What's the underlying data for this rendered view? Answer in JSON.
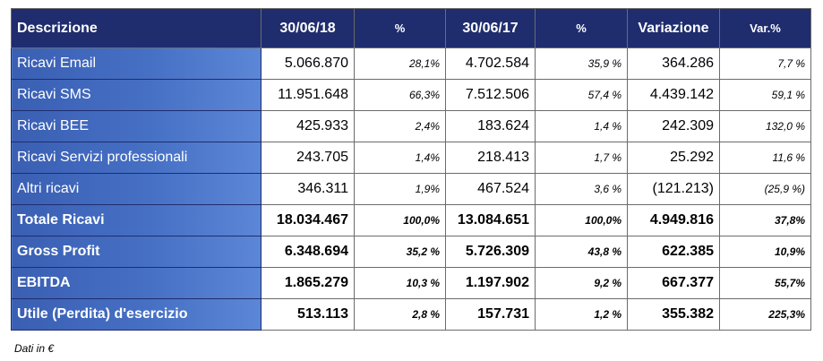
{
  "table": {
    "headers": [
      "Descrizione",
      "30/06/18",
      "%",
      "30/06/17",
      "%",
      "Variazione",
      "Var.%"
    ],
    "rows": [
      [
        "Ricavi Email",
        "5.066.870",
        "28,1%",
        "4.702.584",
        "35,9 %",
        "364.286",
        "7,7 %"
      ],
      [
        "Ricavi SMS",
        "11.951.648",
        "66,3%",
        "7.512.506",
        "57,4 %",
        "4.439.142",
        "59,1 %"
      ],
      [
        "Ricavi BEE",
        "425.933",
        "2,4%",
        "183.624",
        "1,4 %",
        "242.309",
        "132,0 %"
      ],
      [
        "Ricavi Servizi professionali",
        "243.705",
        "1,4%",
        "218.413",
        "1,7 %",
        "25.292",
        "11,6 %"
      ],
      [
        "Altri ricavi",
        "346.311",
        "1,9%",
        "467.524",
        "3,6 %",
        "(121.213)",
        "(25,9 %)"
      ],
      [
        "Totale Ricavi",
        "18.034.467",
        "100,0%",
        "13.084.651",
        "100,0%",
        "4.949.816",
        "37,8%"
      ],
      [
        "Gross Profit",
        "6.348.694",
        "35,2 %",
        "5.726.309",
        "43,8 %",
        "622.385",
        "10,9%"
      ],
      [
        "EBITDA",
        "1.865.279",
        "10,3 %",
        "1.197.902",
        "9,2 %",
        "667.377",
        "55,7%"
      ],
      [
        "Utile (Perdita) d'esercizio",
        "513.113",
        "2,8 %",
        "157.731",
        "1,2 %",
        "355.382",
        "225,3%"
      ]
    ]
  },
  "footnote": "Dati in €",
  "colors": {
    "header_bg": "#1f2d6e",
    "desc_bg": "#4670c4",
    "text_on_blue": "#ffffff"
  }
}
